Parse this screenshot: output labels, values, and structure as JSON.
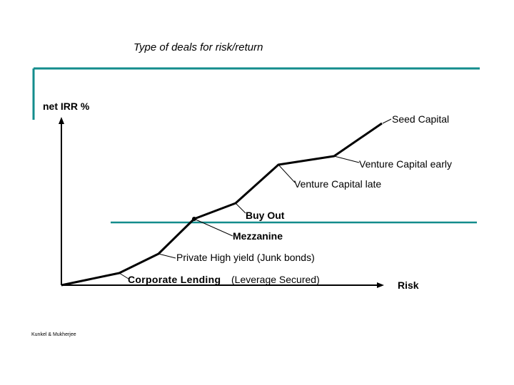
{
  "title": "Type of deals for risk/return",
  "y_axis_label": "net IRR %",
  "x_axis_label": "Risk",
  "footer": "Kunkel & Mukherjee",
  "accent_color": "#138c8c",
  "curve_color": "#000000",
  "deal_types": [
    {
      "label": "Seed Capital",
      "bold": false
    },
    {
      "label": "Venture Capital early",
      "bold": false
    },
    {
      "label": "Venture Capital late",
      "bold": false
    },
    {
      "label": "Buy Out",
      "bold": true
    },
    {
      "label": "Mezzanine",
      "bold": true
    },
    {
      "label": "Private High yield (Junk bonds)",
      "bold": false
    },
    {
      "label": "Corporate Lending",
      "bold": true
    },
    {
      "label": "(Leverage Secured)",
      "bold": false
    }
  ]
}
